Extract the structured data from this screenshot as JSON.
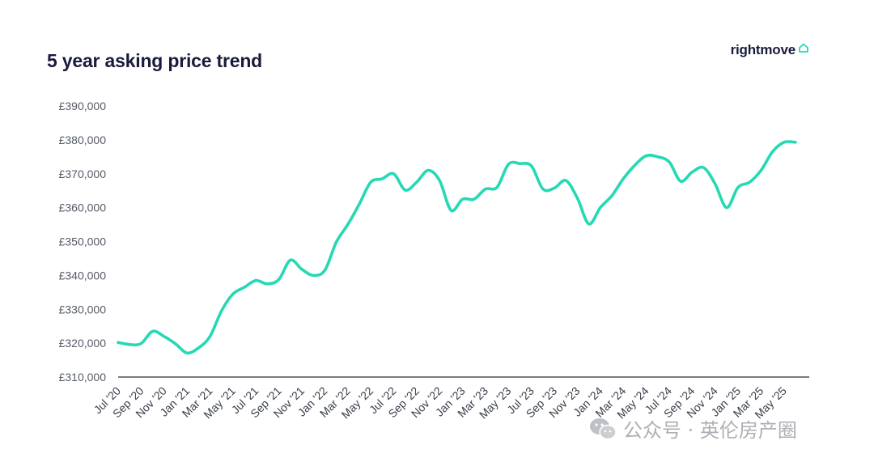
{
  "title": "5 year asking price trend",
  "brand": {
    "name": "rightmove",
    "icon": "house-icon",
    "accent": "#25d9b5"
  },
  "watermark": {
    "text": "公众号 · 英伦房产圈",
    "icon": "wechat-icon"
  },
  "chart_data": {
    "type": "line",
    "title": "5 year asking price trend",
    "xlabel": "",
    "ylabel": "",
    "ylim": [
      310000,
      390000
    ],
    "yticks": [
      310000,
      320000,
      330000,
      340000,
      350000,
      360000,
      370000,
      380000,
      390000
    ],
    "ytick_labels": [
      "£310,000",
      "£320,000",
      "£330,000",
      "£340,000",
      "£350,000",
      "£360,000",
      "£370,000",
      "£380,000",
      "£390,000"
    ],
    "x_tick_labels": [
      "Jul '20",
      "Sep '20",
      "Nov '20",
      "Jan '21",
      "Mar '21",
      "May '21",
      "Jul '21",
      "Sep '21",
      "Nov '21",
      "Jan '22",
      "Mar '22",
      "May '22",
      "Jul '22",
      "Sep '22",
      "Nov '22",
      "Jan '23",
      "Mar '23",
      "May '23",
      "Jul '23",
      "Sep '23",
      "Nov '23",
      "Jan '24",
      "Mar '24",
      "May '24",
      "Jul '24",
      "Sep '24",
      "Nov '24",
      "Jan '25",
      "Mar '25",
      "May '25"
    ],
    "grid": false,
    "line_color": "#25d9b5",
    "series": [
      {
        "x": [
          "2020-07",
          "2020-08",
          "2020-09",
          "2020-10",
          "2020-11",
          "2020-12",
          "2021-01",
          "2021-02",
          "2021-03",
          "2021-04",
          "2021-05",
          "2021-06",
          "2021-07",
          "2021-08",
          "2021-09",
          "2021-10",
          "2021-11",
          "2021-12",
          "2022-01",
          "2022-02",
          "2022-03",
          "2022-04",
          "2022-05",
          "2022-06",
          "2022-07",
          "2022-08",
          "2022-09",
          "2022-10",
          "2022-11",
          "2022-12",
          "2023-01",
          "2023-02",
          "2023-03",
          "2023-04",
          "2023-05",
          "2023-06",
          "2023-07",
          "2023-08",
          "2023-09",
          "2023-10",
          "2023-11",
          "2023-12",
          "2024-01",
          "2024-02",
          "2024-03",
          "2024-04",
          "2024-05",
          "2024-06",
          "2024-07",
          "2024-08",
          "2024-09",
          "2024-10",
          "2024-11",
          "2024-12",
          "2025-01",
          "2025-02",
          "2025-03",
          "2025-04",
          "2025-05",
          "2025-06"
        ],
        "values": [
          320200,
          319600,
          319900,
          323500,
          322000,
          319800,
          317100,
          318600,
          322000,
          329500,
          334500,
          336500,
          338500,
          337500,
          338800,
          344500,
          341800,
          340000,
          341500,
          349800,
          355000,
          361000,
          367500,
          368500,
          370000,
          365200,
          367500,
          371000,
          368000,
          359200,
          362500,
          362500,
          365500,
          366000,
          372800,
          373000,
          372300,
          365500,
          365800,
          368000,
          362800,
          355200,
          360000,
          363500,
          368500,
          372500,
          375300,
          375000,
          373500,
          367800,
          370500,
          371800,
          367000,
          360000,
          366000,
          367500,
          371000,
          376500,
          379300,
          379300
        ]
      }
    ]
  }
}
